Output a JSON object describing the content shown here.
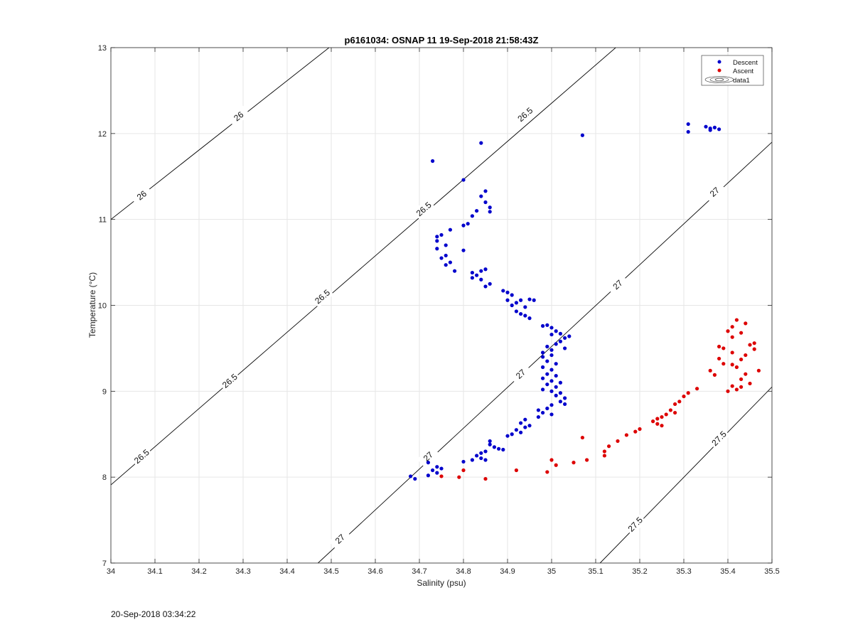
{
  "footer_timestamp": "20-Sep-2018 03:34:22",
  "chart_data": {
    "type": "scatter",
    "title": "p6161034: OSNAP 11 19-Sep-2018 21:58:43Z",
    "xlabel": "Salinity (psu)",
    "ylabel": "Temperature (°C)",
    "xlim": [
      34,
      35.5
    ],
    "ylim": [
      7,
      13
    ],
    "xticks": [
      "34",
      "34.1",
      "34.2",
      "34.3",
      "34.4",
      "34.5",
      "34.6",
      "34.7",
      "34.8",
      "34.9",
      "35",
      "35.1",
      "35.2",
      "35.3",
      "35.4",
      "35.5"
    ],
    "yticks": [
      "7",
      "8",
      "9",
      "10",
      "11",
      "12",
      "13"
    ],
    "grid": true,
    "legend_position": "top-right",
    "legend": [
      "Descent",
      "Ascent",
      "data1"
    ],
    "colors": {
      "descent": "#0000cc",
      "ascent": "#dd0000",
      "contour": "#000000"
    },
    "contours": [
      {
        "level": "26",
        "points": [
          [
            34.0,
            11.0
          ],
          [
            34.5,
            13.02
          ]
        ],
        "labels": [
          [
            34.07,
            11.28
          ],
          [
            34.29,
            12.2
          ]
        ]
      },
      {
        "level": "26.5",
        "points": [
          [
            34.0,
            7.91
          ],
          [
            35.15,
            13.02
          ]
        ],
        "labels": [
          [
            34.07,
            8.24
          ],
          [
            34.27,
            9.12
          ],
          [
            34.48,
            10.1
          ],
          [
            34.71,
            11.12
          ],
          [
            34.94,
            12.22
          ]
        ]
      },
      {
        "level": "27",
        "points": [
          [
            34.47,
            7.0
          ],
          [
            35.5,
            11.9
          ]
        ],
        "labels": [
          [
            34.52,
            7.28
          ],
          [
            34.72,
            8.24
          ],
          [
            34.93,
            9.2
          ],
          [
            35.15,
            10.24
          ],
          [
            35.37,
            11.32
          ]
        ]
      },
      {
        "level": "27.5",
        "points": [
          [
            35.11,
            7.0
          ],
          [
            35.5,
            9.05
          ]
        ],
        "labels": [
          [
            35.19,
            7.45
          ],
          [
            35.38,
            8.45
          ]
        ]
      }
    ],
    "series": [
      {
        "name": "Descent",
        "points": [
          [
            34.73,
            11.68
          ],
          [
            34.84,
            11.89
          ],
          [
            35.07,
            11.98
          ],
          [
            35.31,
            12.11
          ],
          [
            35.31,
            12.02
          ],
          [
            35.35,
            12.08
          ],
          [
            35.36,
            12.06
          ],
          [
            35.36,
            12.04
          ],
          [
            35.37,
            12.07
          ],
          [
            35.38,
            12.05
          ],
          [
            34.8,
            11.46
          ],
          [
            34.84,
            11.27
          ],
          [
            34.85,
            11.33
          ],
          [
            34.85,
            11.2
          ],
          [
            34.86,
            11.14
          ],
          [
            34.83,
            11.1
          ],
          [
            34.82,
            11.04
          ],
          [
            34.86,
            11.09
          ],
          [
            34.81,
            10.95
          ],
          [
            34.8,
            10.93
          ],
          [
            34.77,
            10.88
          ],
          [
            34.74,
            10.8
          ],
          [
            34.75,
            10.82
          ],
          [
            34.74,
            10.75
          ],
          [
            34.76,
            10.7
          ],
          [
            34.8,
            10.64
          ],
          [
            34.74,
            10.66
          ],
          [
            34.76,
            10.58
          ],
          [
            34.75,
            10.55
          ],
          [
            34.77,
            10.5
          ],
          [
            34.76,
            10.47
          ],
          [
            34.78,
            10.4
          ],
          [
            34.82,
            10.38
          ],
          [
            34.83,
            10.35
          ],
          [
            34.82,
            10.32
          ],
          [
            34.84,
            10.4
          ],
          [
            34.85,
            10.42
          ],
          [
            34.84,
            10.3
          ],
          [
            34.85,
            10.22
          ],
          [
            34.86,
            10.25
          ],
          [
            34.89,
            10.17
          ],
          [
            34.9,
            10.15
          ],
          [
            34.91,
            10.12
          ],
          [
            34.9,
            10.06
          ],
          [
            34.92,
            10.03
          ],
          [
            34.93,
            10.06
          ],
          [
            34.95,
            10.07
          ],
          [
            34.96,
            10.06
          ],
          [
            34.91,
            10.0
          ],
          [
            34.94,
            9.98
          ],
          [
            34.93,
            9.9
          ],
          [
            34.94,
            9.88
          ],
          [
            34.95,
            9.85
          ],
          [
            34.92,
            9.93
          ],
          [
            34.98,
            9.76
          ],
          [
            34.99,
            9.77
          ],
          [
            35.0,
            9.74
          ],
          [
            35.01,
            9.7
          ],
          [
            35.0,
            9.66
          ],
          [
            35.02,
            9.67
          ],
          [
            35.03,
            9.62
          ],
          [
            35.04,
            9.64
          ],
          [
            35.01,
            9.55
          ],
          [
            35.02,
            9.58
          ],
          [
            35.03,
            9.5
          ],
          [
            34.99,
            9.52
          ],
          [
            35.0,
            9.48
          ],
          [
            34.98,
            9.45
          ],
          [
            34.98,
            9.4
          ],
          [
            35.0,
            9.42
          ],
          [
            34.99,
            9.35
          ],
          [
            35.01,
            9.32
          ],
          [
            34.98,
            9.28
          ],
          [
            35.0,
            9.25
          ],
          [
            34.99,
            9.2
          ],
          [
            35.01,
            9.18
          ],
          [
            34.98,
            9.15
          ],
          [
            35.0,
            9.12
          ],
          [
            35.02,
            9.1
          ],
          [
            34.99,
            9.08
          ],
          [
            35.01,
            9.05
          ],
          [
            34.98,
            9.02
          ],
          [
            35.0,
            9.0
          ],
          [
            35.02,
            8.98
          ],
          [
            35.01,
            8.95
          ],
          [
            35.03,
            8.92
          ],
          [
            35.02,
            8.88
          ],
          [
            35.03,
            8.85
          ],
          [
            35.0,
            8.84
          ],
          [
            34.99,
            8.8
          ],
          [
            34.97,
            8.78
          ],
          [
            34.98,
            8.75
          ],
          [
            35.0,
            8.73
          ],
          [
            34.97,
            8.7
          ],
          [
            34.94,
            8.67
          ],
          [
            34.93,
            8.63
          ],
          [
            34.95,
            8.6
          ],
          [
            34.94,
            8.58
          ],
          [
            34.92,
            8.55
          ],
          [
            34.93,
            8.52
          ],
          [
            34.91,
            8.5
          ],
          [
            34.9,
            8.48
          ],
          [
            34.89,
            8.32
          ],
          [
            34.88,
            8.33
          ],
          [
            34.87,
            8.35
          ],
          [
            34.86,
            8.38
          ],
          [
            34.86,
            8.42
          ],
          [
            34.85,
            8.3
          ],
          [
            34.84,
            8.28
          ],
          [
            34.84,
            8.22
          ],
          [
            34.83,
            8.25
          ],
          [
            34.82,
            8.2
          ],
          [
            34.85,
            8.2
          ],
          [
            34.8,
            8.18
          ],
          [
            34.74,
            8.12
          ],
          [
            34.75,
            8.1
          ],
          [
            34.73,
            8.08
          ],
          [
            34.74,
            8.05
          ],
          [
            34.72,
            8.17
          ],
          [
            34.72,
            8.02
          ],
          [
            34.68,
            8.01
          ],
          [
            34.69,
            7.98
          ]
        ]
      },
      {
        "name": "Ascent",
        "points": [
          [
            35.42,
            9.83
          ],
          [
            35.44,
            9.79
          ],
          [
            35.41,
            9.75
          ],
          [
            35.4,
            9.7
          ],
          [
            35.43,
            9.68
          ],
          [
            35.41,
            9.63
          ],
          [
            35.38,
            9.52
          ],
          [
            35.39,
            9.5
          ],
          [
            35.46,
            9.56
          ],
          [
            35.45,
            9.54
          ],
          [
            35.46,
            9.49
          ],
          [
            35.41,
            9.45
          ],
          [
            35.44,
            9.42
          ],
          [
            35.38,
            9.38
          ],
          [
            35.43,
            9.37
          ],
          [
            35.39,
            9.32
          ],
          [
            35.41,
            9.31
          ],
          [
            35.36,
            9.24
          ],
          [
            35.37,
            9.19
          ],
          [
            35.42,
            9.28
          ],
          [
            35.44,
            9.2
          ],
          [
            35.47,
            9.24
          ],
          [
            35.43,
            9.14
          ],
          [
            35.41,
            9.06
          ],
          [
            35.42,
            9.02
          ],
          [
            35.4,
            9.0
          ],
          [
            35.43,
            9.05
          ],
          [
            35.45,
            9.09
          ],
          [
            35.33,
            9.03
          ],
          [
            35.31,
            8.98
          ],
          [
            35.3,
            8.94
          ],
          [
            35.29,
            8.88
          ],
          [
            35.28,
            8.85
          ],
          [
            35.27,
            8.78
          ],
          [
            35.28,
            8.75
          ],
          [
            35.26,
            8.73
          ],
          [
            35.25,
            8.7
          ],
          [
            35.24,
            8.68
          ],
          [
            35.23,
            8.65
          ],
          [
            35.24,
            8.62
          ],
          [
            35.25,
            8.6
          ],
          [
            35.2,
            8.56
          ],
          [
            35.19,
            8.53
          ],
          [
            35.17,
            8.49
          ],
          [
            35.15,
            8.42
          ],
          [
            35.13,
            8.36
          ],
          [
            35.12,
            8.3
          ],
          [
            35.12,
            8.25
          ],
          [
            35.08,
            8.2
          ],
          [
            35.07,
            8.46
          ],
          [
            35.05,
            8.17
          ],
          [
            35.01,
            8.14
          ],
          [
            35.0,
            8.2
          ],
          [
            34.99,
            8.06
          ],
          [
            34.92,
            8.08
          ],
          [
            34.8,
            8.08
          ],
          [
            34.79,
            8.0
          ],
          [
            34.75,
            8.01
          ],
          [
            34.85,
            7.98
          ]
        ]
      }
    ]
  }
}
